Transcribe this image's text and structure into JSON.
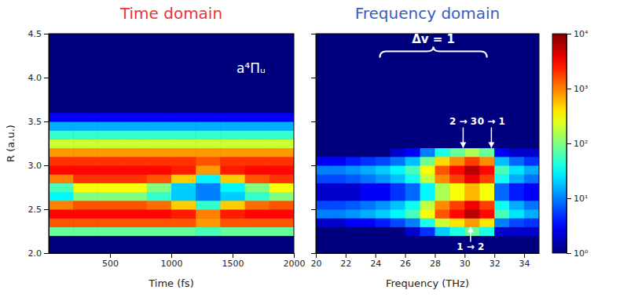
{
  "chart_data": [
    {
      "type": "heatmap",
      "title": "Time domain",
      "xlabel": "Time (fs)",
      "ylabel": "R (a.u.)",
      "xlim": [
        0,
        2000
      ],
      "xticks": [
        500,
        1000,
        1500,
        2000
      ],
      "ylim": [
        2,
        4.5
      ],
      "yticks": [
        {
          "value": 2,
          "label": "2.0"
        },
        2.5,
        {
          "value": 3,
          "label": "3.0"
        },
        3.5,
        {
          "value": 4,
          "label": "4.0"
        },
        4.5
      ],
      "x_bins": [
        0,
        200,
        400,
        600,
        800,
        1000,
        1200,
        1400,
        1600,
        1800,
        2000
      ],
      "y_bins": [
        2,
        2.1,
        2.2,
        2.3,
        2.4,
        2.5,
        2.6,
        2.7,
        2.8,
        2.9,
        3,
        3.1,
        3.2,
        3.3,
        3.4,
        3.5,
        3.6,
        3.7,
        3.8,
        3.9,
        4,
        4.1,
        4.2,
        4.3,
        4.4,
        4.5
      ],
      "values": [
        [
          1,
          1,
          1,
          1,
          1,
          1,
          1,
          1,
          1,
          1
        ],
        [
          1,
          1,
          1,
          1,
          1,
          1,
          1,
          1,
          1,
          1
        ],
        [
          80,
          80,
          80,
          80,
          80,
          80,
          60,
          80,
          80,
          80
        ],
        [
          1500,
          1500,
          1500,
          1500,
          1500,
          1500,
          800,
          1500,
          1500,
          1500
        ],
        [
          3000,
          3000,
          3000,
          3000,
          3000,
          2500,
          1000,
          2500,
          3000,
          3000
        ],
        [
          1000,
          1500,
          1500,
          1500,
          1200,
          500,
          50,
          500,
          1200,
          1500
        ],
        [
          30,
          100,
          100,
          100,
          50,
          20,
          10,
          20,
          50,
          100
        ],
        [
          60,
          300,
          300,
          300,
          100,
          20,
          10,
          30,
          100,
          300
        ],
        [
          1000,
          2000,
          2000,
          2000,
          1500,
          500,
          30,
          500,
          1500,
          2000
        ],
        [
          3000,
          3000,
          3000,
          3000,
          3000,
          2500,
          800,
          2500,
          3000,
          3000
        ],
        [
          2000,
          2000,
          2000,
          2000,
          2000,
          2000,
          1500,
          2000,
          2000,
          2000
        ],
        [
          800,
          800,
          800,
          800,
          800,
          800,
          800,
          800,
          800,
          800
        ],
        [
          200,
          200,
          200,
          200,
          200,
          200,
          200,
          200,
          200,
          200
        ],
        [
          50,
          50,
          50,
          50,
          50,
          50,
          50,
          50,
          50,
          50
        ],
        [
          15,
          15,
          15,
          15,
          15,
          15,
          15,
          15,
          15,
          15
        ],
        [
          3,
          3,
          3,
          3,
          3,
          3,
          3,
          3,
          3,
          3
        ],
        [
          1,
          1,
          1,
          1,
          1,
          1,
          1,
          1,
          1,
          1
        ],
        [
          1,
          1,
          1,
          1,
          1,
          1,
          1,
          1,
          1,
          1
        ],
        [
          1,
          1,
          1,
          1,
          1,
          1,
          1,
          1,
          1,
          1
        ],
        [
          1,
          1,
          1,
          1,
          1,
          1,
          1,
          1,
          1,
          1
        ],
        [
          1,
          1,
          1,
          1,
          1,
          1,
          1,
          1,
          1,
          1
        ],
        [
          1,
          1,
          1,
          1,
          1,
          1,
          1,
          1,
          1,
          1
        ],
        [
          1,
          1,
          1,
          1,
          1,
          1,
          1,
          1,
          1,
          1
        ],
        [
          1,
          1,
          1,
          1,
          1,
          1,
          1,
          1,
          1,
          1
        ],
        [
          1,
          1,
          1,
          1,
          1,
          1,
          1,
          1,
          1,
          1
        ]
      ],
      "annotations": [
        {
          "text": "a⁴Πᵤ",
          "x": 1650,
          "y": 4.05
        }
      ]
    },
    {
      "type": "heatmap",
      "title": "Frequency domain",
      "xlabel": "Frequency (THz)",
      "xlim": [
        20,
        35
      ],
      "xticks": [
        20,
        22,
        24,
        26,
        28,
        30,
        32,
        34
      ],
      "ylim": [
        2,
        4.5
      ],
      "yticks": [
        2,
        2.5,
        3,
        3.5,
        4,
        4.5
      ],
      "tick_labels": "x",
      "x_bins": [
        20,
        21,
        22,
        23,
        24,
        25,
        26,
        27,
        28,
        29,
        30,
        31,
        32,
        33,
        34,
        35
      ],
      "y_bins": [
        2,
        2.1,
        2.2,
        2.3,
        2.4,
        2.5,
        2.6,
        2.7,
        2.8,
        2.9,
        3,
        3.1,
        3.2,
        3.3,
        3.4,
        3.5,
        3.6,
        3.7,
        3.8,
        3.9,
        4,
        4.1,
        4.2,
        4.3,
        4.4,
        4.5
      ],
      "values": [
        [
          1,
          1,
          1,
          1,
          1,
          1,
          1,
          1,
          1,
          1,
          1,
          1,
          1,
          1,
          1
        ],
        [
          1,
          1,
          1,
          1,
          1,
          1,
          1,
          1,
          1,
          1,
          1,
          1,
          1,
          1,
          1
        ],
        [
          1,
          1,
          1,
          1,
          1,
          1,
          2,
          5,
          20,
          40,
          80,
          40,
          2,
          2,
          2
        ],
        [
          2,
          2,
          3,
          3,
          4,
          6,
          10,
          40,
          200,
          400,
          800,
          400,
          10,
          6,
          5
        ],
        [
          10,
          10,
          12,
          15,
          20,
          30,
          60,
          300,
          1500,
          3000,
          6000,
          3000,
          60,
          25,
          15
        ],
        [
          6,
          6,
          7,
          9,
          12,
          18,
          36,
          180,
          900,
          1800,
          3600,
          1800,
          36,
          15,
          9
        ],
        [
          2,
          2,
          2,
          3,
          3,
          5,
          8,
          30,
          150,
          300,
          600,
          300,
          8,
          4,
          3
        ],
        [
          2,
          2,
          2,
          3,
          3,
          5,
          8,
          30,
          150,
          300,
          600,
          300,
          8,
          4,
          3
        ],
        [
          6,
          6,
          7,
          9,
          12,
          18,
          36,
          180,
          900,
          1800,
          3600,
          1800,
          36,
          15,
          9
        ],
        [
          10,
          10,
          12,
          15,
          20,
          30,
          60,
          300,
          1500,
          3000,
          6000,
          3000,
          60,
          25,
          15
        ],
        [
          3,
          3,
          4,
          5,
          6,
          9,
          18,
          90,
          450,
          900,
          1800,
          900,
          18,
          8,
          5
        ],
        [
          1,
          1,
          1,
          1,
          1,
          2,
          3,
          10,
          40,
          80,
          150,
          80,
          3,
          2,
          2
        ],
        [
          1,
          1,
          1,
          1,
          1,
          1,
          1,
          1,
          1,
          1,
          1,
          1,
          1,
          1,
          1
        ],
        [
          1,
          1,
          1,
          1,
          1,
          1,
          1,
          1,
          1,
          1,
          1,
          1,
          1,
          1,
          1
        ],
        [
          1,
          1,
          1,
          1,
          1,
          1,
          1,
          1,
          1,
          1,
          1,
          1,
          1,
          1,
          1
        ],
        [
          1,
          1,
          1,
          1,
          1,
          1,
          1,
          1,
          1,
          1,
          1,
          1,
          1,
          1,
          1
        ],
        [
          1,
          1,
          1,
          1,
          1,
          1,
          1,
          1,
          1,
          1,
          1,
          1,
          1,
          1,
          1
        ],
        [
          1,
          1,
          1,
          1,
          1,
          1,
          1,
          1,
          1,
          1,
          1,
          1,
          1,
          1,
          1
        ],
        [
          1,
          1,
          1,
          1,
          1,
          1,
          1,
          1,
          1,
          1,
          1,
          1,
          1,
          1,
          1
        ],
        [
          1,
          1,
          1,
          1,
          1,
          1,
          1,
          1,
          1,
          1,
          1,
          1,
          1,
          1,
          1
        ],
        [
          1,
          1,
          1,
          1,
          1,
          1,
          1,
          1,
          1,
          1,
          1,
          1,
          1,
          1,
          1
        ],
        [
          1,
          1,
          1,
          1,
          1,
          1,
          1,
          1,
          1,
          1,
          1,
          1,
          1,
          1,
          1
        ],
        [
          1,
          1,
          1,
          1,
          1,
          1,
          1,
          1,
          1,
          1,
          1,
          1,
          1,
          1,
          1
        ],
        [
          1,
          1,
          1,
          1,
          1,
          1,
          1,
          1,
          1,
          1,
          1,
          1,
          1,
          1,
          1
        ],
        [
          1,
          1,
          1,
          1,
          1,
          1,
          1,
          1,
          1,
          1,
          1,
          1,
          1,
          1,
          1
        ]
      ],
      "annotations": [
        {
          "text": "Δv = 1",
          "x_range": [
            24.3,
            31.5
          ],
          "y": 4.3
        },
        {
          "text": "2 → 3",
          "x": 29.9,
          "y": 3.2,
          "marker": "arrow"
        },
        {
          "text": "0 → 1",
          "x": 31.8,
          "y": 3.2,
          "marker": "arrow"
        },
        {
          "text": "1 → 2",
          "x": 30.4,
          "y": 2.3,
          "marker": "arrow"
        }
      ],
      "colorbar": {
        "range": [
          1,
          10000
        ],
        "log": true,
        "ticks": [
          {
            "value": 1,
            "label": "10⁰"
          },
          {
            "value": 10,
            "label": "10¹"
          },
          {
            "value": 100,
            "label": "10²"
          },
          {
            "value": 1000,
            "label": "10³"
          },
          {
            "value": 10000,
            "label": "10⁴"
          }
        ]
      }
    }
  ]
}
